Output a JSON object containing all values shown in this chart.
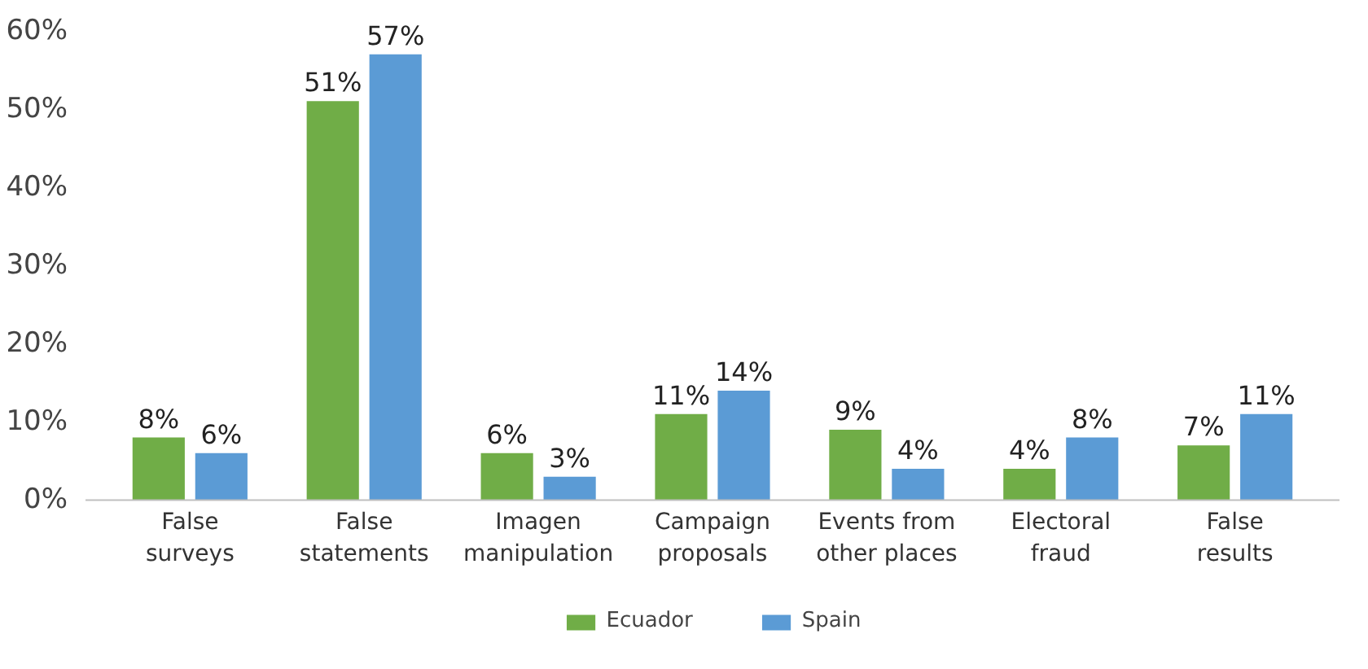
{
  "chart_data": {
    "type": "bar",
    "categories": [
      "False\nsurveys",
      "False\nstatements",
      "Imagen\nmanipulation",
      "Campaign\nproposals",
      "Events from\nother places",
      "Electoral\nfraud",
      "False\nresults"
    ],
    "series": [
      {
        "name": "Ecuador",
        "color": "#70ad47",
        "values": [
          8,
          51,
          6,
          11,
          9,
          4,
          7
        ],
        "value_labels": [
          "8%",
          "51%",
          "6%",
          "11%",
          "9%",
          "4%",
          "7%"
        ]
      },
      {
        "name": "Spain",
        "color": "#5b9bd5",
        "values": [
          6,
          57,
          3,
          14,
          4,
          8,
          11
        ],
        "value_labels": [
          "6%",
          "57%",
          "3%",
          "14%",
          "4%",
          "8%",
          "11%"
        ]
      }
    ],
    "ylim": [
      0,
      60
    ],
    "yticks": [
      {
        "value": 0,
        "label": "0%"
      },
      {
        "value": 10,
        "label": "10%"
      },
      {
        "value": 20,
        "label": "20%"
      },
      {
        "value": 30,
        "label": "30%"
      },
      {
        "value": 40,
        "label": "40%"
      },
      {
        "value": 50,
        "label": "50%"
      },
      {
        "value": 60,
        "label": "60%"
      }
    ],
    "grid": false,
    "legend": "bottom"
  }
}
